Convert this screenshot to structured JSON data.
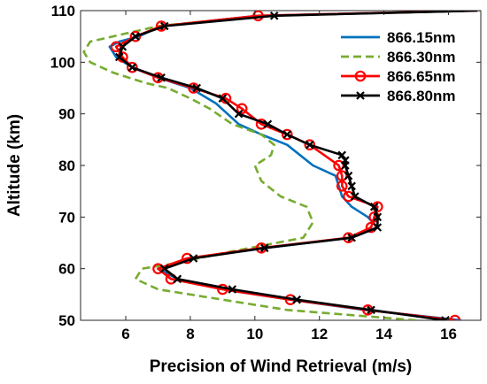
{
  "chart_data": {
    "type": "line",
    "xlabel": "Precision of Wind Retrieval (m/s)",
    "ylabel": "Altitude (km)",
    "xlim": [
      4.6,
      17
    ],
    "ylim": [
      50,
      110
    ],
    "xticks": [
      6,
      8,
      10,
      12,
      14,
      16
    ],
    "yticks": [
      50,
      60,
      70,
      80,
      90,
      100,
      110
    ],
    "grid": false,
    "legend_position": "top-right",
    "series": [
      {
        "name": "866.15nm",
        "color": "#0072BD",
        "style": "solid",
        "marker": "none",
        "x": [
          16.4,
          13.4,
          11.1,
          9.0,
          7.6,
          7.0,
          8.0,
          10.3,
          13.0,
          13.8,
          13.5,
          13.0,
          12.7,
          12.6,
          12.5,
          11.8,
          11.0,
          10.2,
          9.5,
          8.8,
          8.0,
          7.0,
          6.2,
          5.7,
          5.5,
          5.8,
          6.4,
          7.1,
          10.1,
          16.9
        ],
        "y": [
          50,
          52,
          54,
          56,
          58,
          60,
          62,
          64,
          66,
          68,
          70,
          72,
          74,
          76,
          78,
          80,
          84,
          86,
          88,
          92,
          95,
          97,
          99,
          101,
          103,
          104,
          105,
          107,
          109,
          110
        ]
      },
      {
        "name": "866.30nm",
        "color": "#77AC30",
        "style": "dashed",
        "marker": "none",
        "x": [
          15.0,
          11.0,
          9.0,
          7.0,
          6.3,
          6.5,
          7.5,
          9.0,
          11.5,
          11.8,
          11.6,
          10.8,
          10.2,
          10.0,
          10.5,
          10.6,
          10.2,
          9.3,
          8.6,
          8.0,
          7.3,
          6.6,
          5.6,
          4.9,
          4.7,
          4.9,
          5.6,
          7.0,
          10.2,
          17.0
        ],
        "y": [
          50,
          52,
          54,
          56,
          58,
          60,
          61,
          63,
          66,
          69,
          72,
          74,
          77,
          80,
          82,
          84,
          86,
          88,
          91,
          93,
          95,
          96,
          98,
          100,
          102,
          104,
          105,
          107,
          109,
          110
        ]
      },
      {
        "name": "866.65nm",
        "color": "#FF0000",
        "style": "solid",
        "marker": "circle",
        "x": [
          16.2,
          13.5,
          11.1,
          9.0,
          7.4,
          7.0,
          7.9,
          10.2,
          12.9,
          13.6,
          13.7,
          13.8,
          12.9,
          12.7,
          12.7,
          12.6,
          11.7,
          11.0,
          10.2,
          9.6,
          9.1,
          8.1,
          7.0,
          6.2,
          5.9,
          5.7,
          6.3,
          7.1,
          10.1,
          16.9
        ],
        "y": [
          50,
          52,
          54,
          56,
          58,
          60,
          62,
          64,
          66,
          68,
          70,
          72,
          74,
          76,
          78,
          80,
          84,
          86,
          88,
          91,
          93,
          95,
          97,
          99,
          101,
          103,
          105,
          107,
          109,
          110
        ]
      },
      {
        "name": "866.80nm",
        "color": "#000000",
        "style": "solid",
        "marker": "x",
        "x": [
          15.9,
          13.6,
          11.3,
          9.3,
          7.6,
          7.2,
          8.1,
          10.3,
          13.0,
          13.8,
          13.8,
          13.7,
          13.1,
          13.0,
          12.9,
          12.8,
          12.8,
          12.7,
          11.7,
          11.0,
          10.4,
          9.5,
          9.0,
          8.2,
          7.1,
          6.2,
          5.8,
          5.9,
          6.3,
          7.2,
          10.6,
          16.9
        ],
        "y": [
          50,
          52,
          54,
          56,
          58,
          60,
          62,
          64,
          66,
          68,
          70,
          72,
          74,
          76,
          78,
          80,
          81,
          82,
          84,
          86,
          88,
          90,
          93,
          95,
          97,
          99,
          101,
          103,
          105,
          107,
          109,
          110
        ]
      }
    ]
  }
}
